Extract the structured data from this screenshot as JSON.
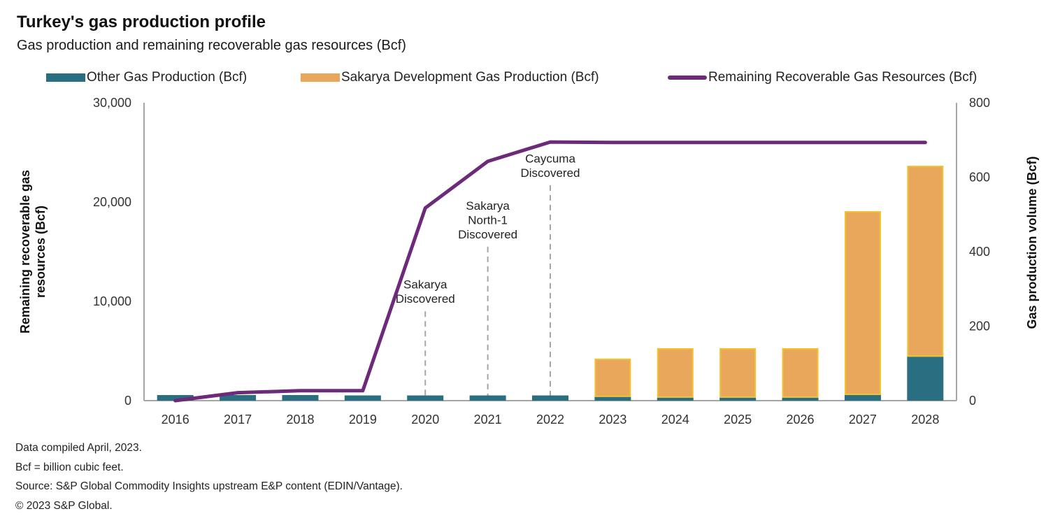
{
  "header": {
    "title": "Turkey's gas production profile",
    "subtitle": "Gas production and remaining recoverable gas resources (Bcf)"
  },
  "colors": {
    "other": "#2a6e82",
    "sakarya": "#e8a75a",
    "sakarya_border": "#f2c230",
    "line": "#6e2a7a",
    "axis": "#a6a6a6",
    "dash": "#a6a6a6"
  },
  "chart_data": {
    "type": "bar",
    "title": "Turkey's gas production profile",
    "subtitle": "Gas production and remaining recoverable gas resources (Bcf)",
    "categories": [
      "2016",
      "2017",
      "2018",
      "2019",
      "2020",
      "2021",
      "2022",
      "2023",
      "2024",
      "2025",
      "2026",
      "2027",
      "2028"
    ],
    "series": [
      {
        "name": "Other Gas Production (Bcf)",
        "kind": "bar",
        "stack": "production",
        "axis": "right",
        "values": [
          15,
          15,
          15,
          14,
          14,
          14,
          14,
          10,
          8,
          8,
          8,
          15,
          118
        ]
      },
      {
        "name": "Sakarya Development Gas Production (Bcf)",
        "kind": "bar",
        "stack": "production",
        "axis": "right",
        "values": [
          0,
          0,
          0,
          0,
          0,
          0,
          0,
          103,
          133,
          133,
          133,
          494,
          513
        ]
      },
      {
        "name": "Remaining Recoverable Gas Resources (Bcf)",
        "kind": "line",
        "axis": "left",
        "values": [
          0,
          800,
          1000,
          1000,
          19400,
          24100,
          26050,
          26000,
          26000,
          26000,
          26000,
          26000,
          26000
        ]
      }
    ],
    "left_axis": {
      "label": "Remaining recoverable gas resources (Bcf)",
      "label_lines": [
        "Remaining recoverable gas",
        "resources (Bcf)"
      ],
      "range": [
        0,
        30000
      ],
      "ticks": [
        0,
        10000,
        20000,
        30000
      ],
      "tick_labels": [
        "0",
        "10,000",
        "20,000",
        "30,000"
      ]
    },
    "right_axis": {
      "label": "Gas production volume (Bcf)",
      "range": [
        0,
        800
      ],
      "ticks": [
        0,
        200,
        400,
        600,
        800
      ],
      "tick_labels": [
        "0",
        "200",
        "400",
        "600",
        "800"
      ]
    },
    "xlabel": "",
    "grid": false,
    "legend": {
      "placement": "top",
      "entries": [
        "Other Gas Production (Bcf)",
        "Sakarya Development Gas Production (Bcf)",
        "Remaining Recoverable Gas Resources (Bcf)"
      ]
    },
    "annotations": [
      {
        "category": "2020",
        "lines": [
          "Sakarya",
          "Discovered"
        ],
        "value_left": 9000,
        "dash_to": 0
      },
      {
        "category": "2021",
        "lines": [
          "Sakarya",
          "North-1",
          "Discovered"
        ],
        "value_left": 15500,
        "dash_to": 0
      },
      {
        "category": "2022",
        "lines": [
          "Caycuma",
          "Discovered"
        ],
        "value_left": 21700,
        "dash_to": 0
      }
    ]
  },
  "notes": [
    "Data compiled April,  2023.",
    "Bcf = billion cubic feet.",
    "Source: S&P Global Commodity Insights upstream E&P content (EDIN/Vantage).",
    "© 2023 S&P Global."
  ]
}
